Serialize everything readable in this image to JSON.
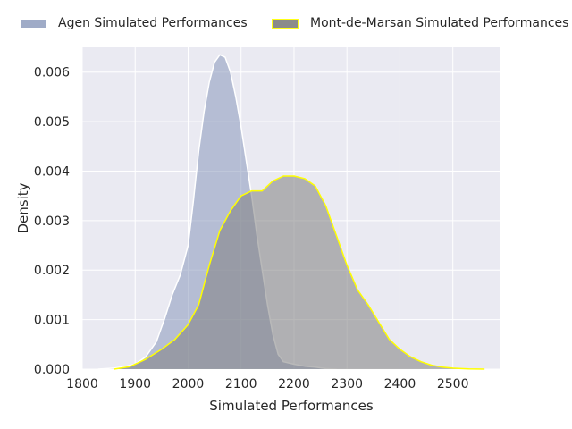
{
  "chart_data": {
    "type": "area",
    "title": "",
    "xlabel": "Simulated Performances",
    "ylabel": "Density",
    "xlim": [
      1800,
      2590
    ],
    "ylim": [
      0,
      0.0065
    ],
    "xticks": [
      "1800",
      "1900",
      "2000",
      "2100",
      "2200",
      "2300",
      "2400",
      "2500"
    ],
    "yticks": [
      "0.000",
      "0.001",
      "0.002",
      "0.003",
      "0.004",
      "0.005",
      "0.006"
    ],
    "grid": true,
    "legend_position": "top",
    "series": [
      {
        "name": "Agen Simulated Performances",
        "fill_color": "#7f8fb5",
        "edge_color": "#ffffff",
        "points": [
          [
            1830,
            0.0
          ],
          [
            1860,
            2e-05
          ],
          [
            1880,
            5e-05
          ],
          [
            1900,
            0.0001
          ],
          [
            1920,
            0.00025
          ],
          [
            1940,
            0.00055
          ],
          [
            1955,
            0.001
          ],
          [
            1970,
            0.0015
          ],
          [
            1985,
            0.0019
          ],
          [
            2000,
            0.0025
          ],
          [
            2010,
            0.0034
          ],
          [
            2020,
            0.0044
          ],
          [
            2030,
            0.0052
          ],
          [
            2040,
            0.0058
          ],
          [
            2050,
            0.0062
          ],
          [
            2060,
            0.00635
          ],
          [
            2070,
            0.0063
          ],
          [
            2080,
            0.006
          ],
          [
            2090,
            0.0055
          ],
          [
            2100,
            0.0049
          ],
          [
            2110,
            0.0042
          ],
          [
            2120,
            0.0035
          ],
          [
            2130,
            0.0027
          ],
          [
            2140,
            0.002
          ],
          [
            2150,
            0.0013
          ],
          [
            2160,
            0.0007
          ],
          [
            2170,
            0.0003
          ],
          [
            2180,
            0.00015
          ],
          [
            2200,
            0.0001
          ],
          [
            2220,
            6e-05
          ],
          [
            2240,
            4e-05
          ],
          [
            2260,
            1e-05
          ],
          [
            2280,
            0.0
          ]
        ]
      },
      {
        "name": "Mont-de-Marsan Simulated Performances",
        "fill_color": "#7f7f7f",
        "edge_color": "#ffff00",
        "points": [
          [
            1860,
            0.0
          ],
          [
            1890,
            5e-05
          ],
          [
            1920,
            0.0002
          ],
          [
            1950,
            0.0004
          ],
          [
            1975,
            0.0006
          ],
          [
            2000,
            0.0009
          ],
          [
            2020,
            0.0013
          ],
          [
            2040,
            0.0021
          ],
          [
            2060,
            0.0028
          ],
          [
            2080,
            0.0032
          ],
          [
            2100,
            0.0035
          ],
          [
            2120,
            0.0036
          ],
          [
            2140,
            0.0036
          ],
          [
            2160,
            0.0038
          ],
          [
            2180,
            0.0039
          ],
          [
            2200,
            0.0039
          ],
          [
            2220,
            0.00385
          ],
          [
            2240,
            0.0037
          ],
          [
            2260,
            0.0033
          ],
          [
            2280,
            0.0027
          ],
          [
            2300,
            0.0021
          ],
          [
            2320,
            0.0016
          ],
          [
            2340,
            0.0013
          ],
          [
            2360,
            0.00095
          ],
          [
            2380,
            0.0006
          ],
          [
            2400,
            0.0004
          ],
          [
            2420,
            0.00025
          ],
          [
            2440,
            0.00015
          ],
          [
            2460,
            8e-05
          ],
          [
            2480,
            4e-05
          ],
          [
            2500,
            2e-05
          ],
          [
            2530,
            5e-06
          ],
          [
            2560,
            0.0
          ]
        ]
      }
    ]
  }
}
